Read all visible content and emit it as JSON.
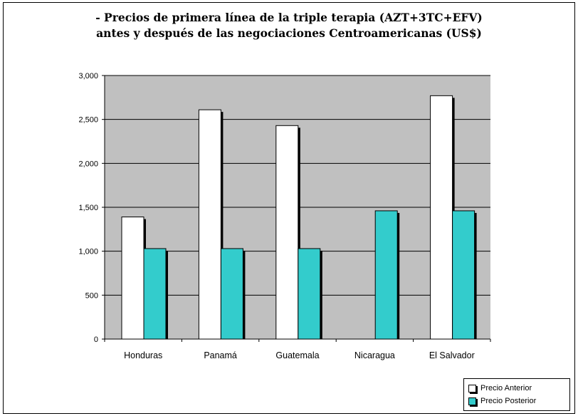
{
  "chart_data": {
    "type": "bar",
    "title": [
      "- Precios de primera línea de la triple terapia (AZT+3TC+EFV)",
      "antes y después de las negociaciones Centroamericanas (US$)"
    ],
    "categories": [
      "Honduras",
      "Panamá",
      "Guatemala",
      "Nicaragua",
      "El Salvador"
    ],
    "series": [
      {
        "name": "Precio Anterior",
        "color": "#ffffff",
        "values": [
          1390,
          2610,
          2430,
          null,
          2770
        ]
      },
      {
        "name": "Precio Posterior",
        "color": "#33cccc",
        "values": [
          1030,
          1030,
          1030,
          1460,
          1460
        ]
      }
    ],
    "yticks": [
      "0",
      "500",
      "1,000",
      "1,500",
      "2,000",
      "2,500",
      "3,000"
    ],
    "ylim": [
      0,
      3000
    ],
    "plot_background": "#c0c0c0",
    "grid": true,
    "legend_position": "bottom-right"
  }
}
